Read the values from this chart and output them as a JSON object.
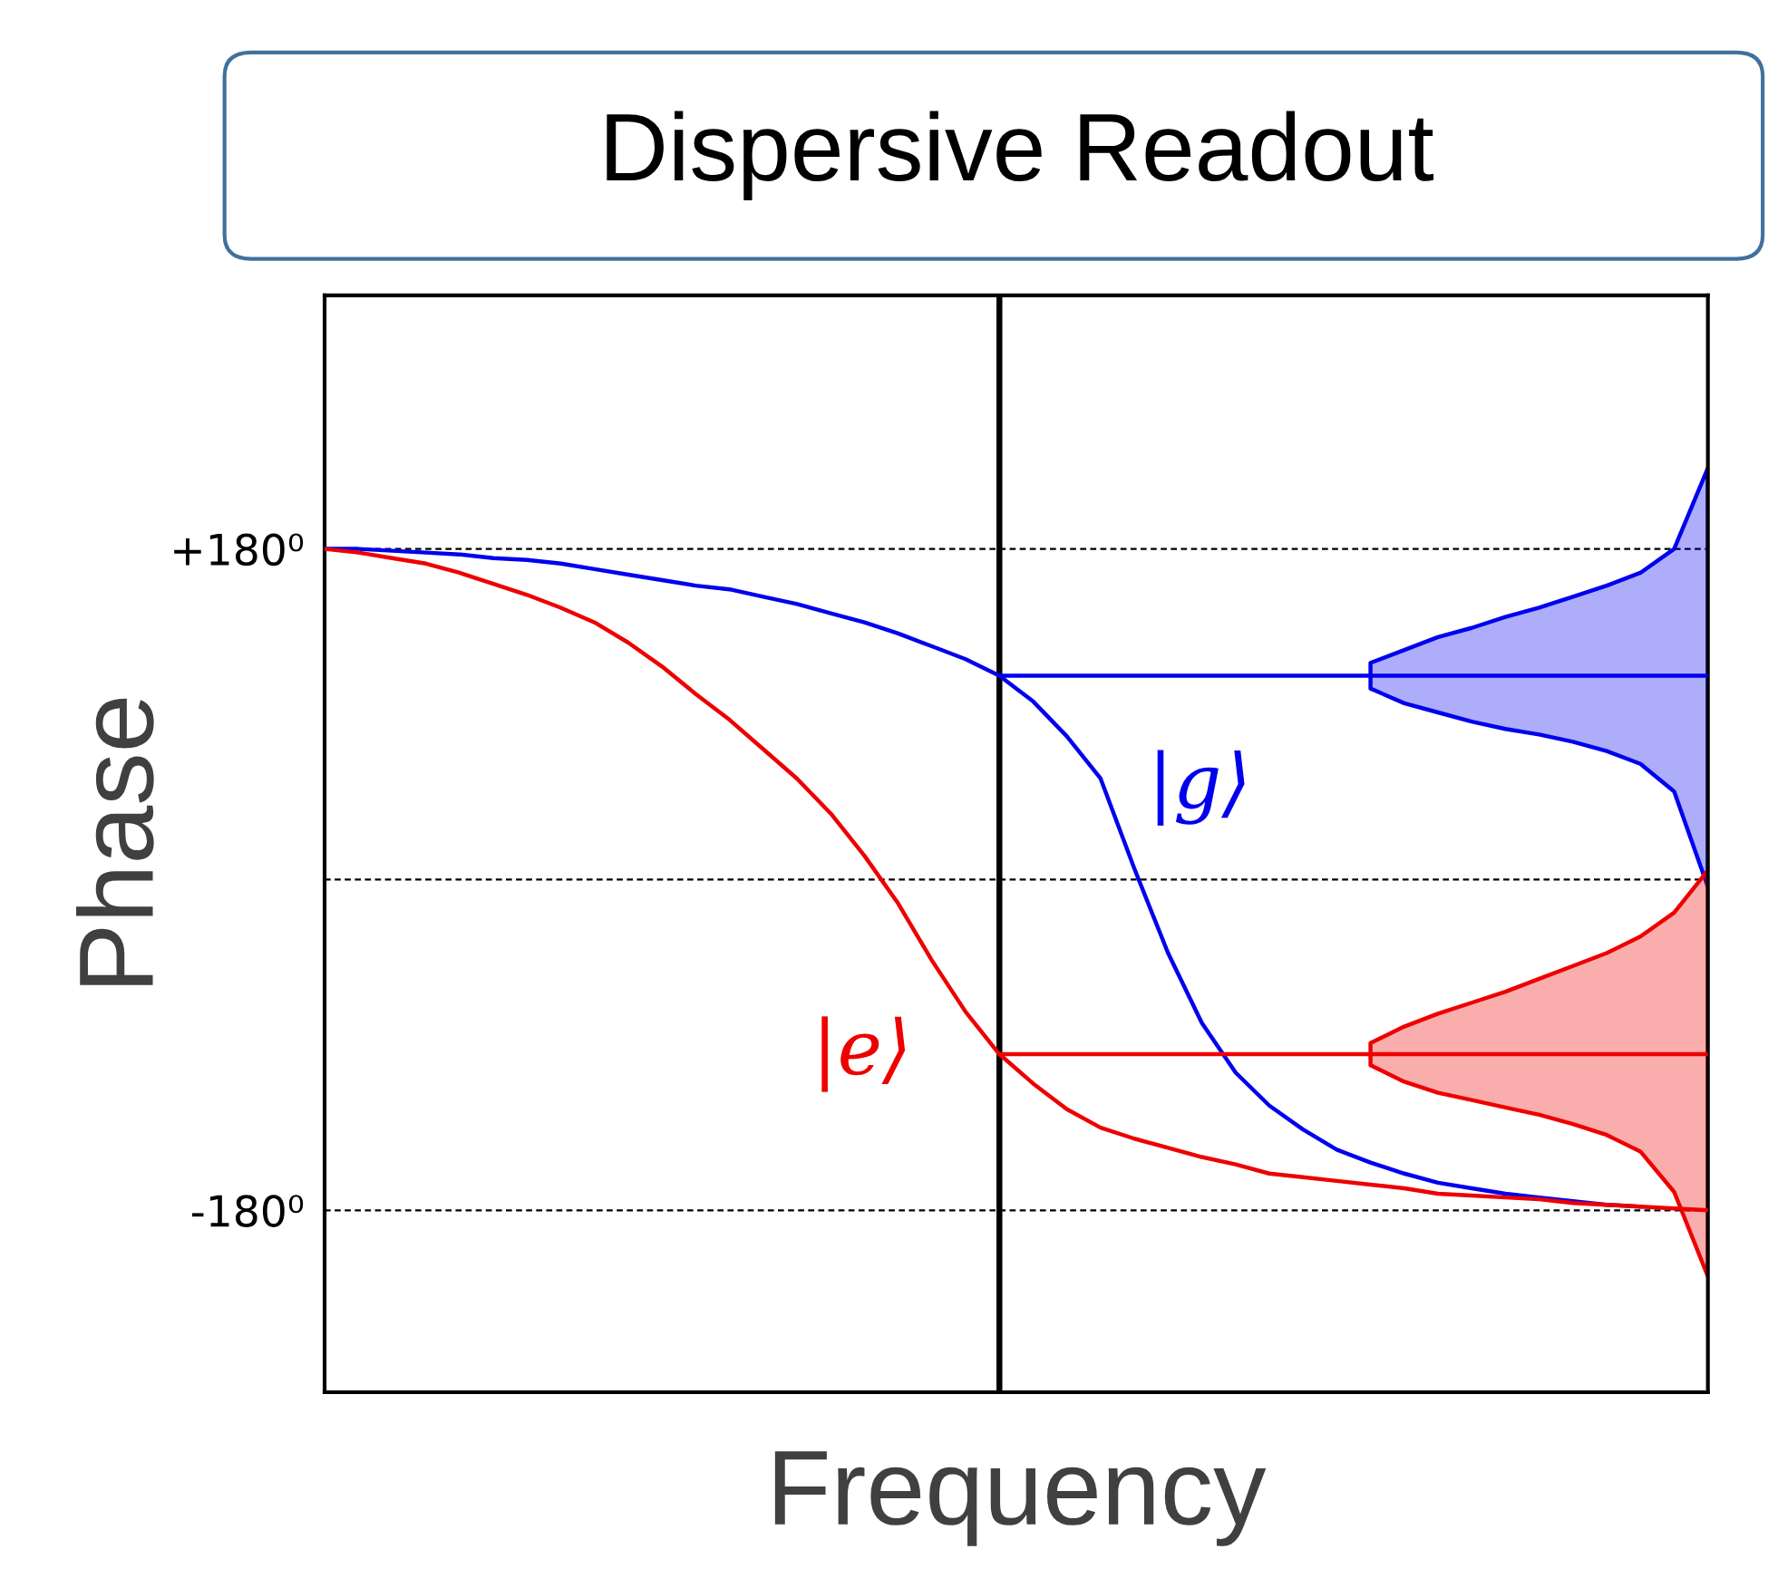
{
  "chart_data": {
    "type": "line",
    "title": "Dispersive Readout",
    "xlabel": "Frequency",
    "ylabel": "Phase",
    "categories": [
      null,
      null,
      null,
      null,
      null,
      null,
      null,
      null,
      null,
      null,
      null,
      null,
      null,
      null,
      null,
      null,
      null,
      null,
      null,
      null,
      null,
      null,
      null,
      null,
      null,
      null,
      null,
      null,
      null,
      null,
      null,
      null,
      null,
      null,
      null,
      null,
      null,
      null,
      null,
      null,
      null,
      null
    ],
    "ylim": [
      -279,
      318
    ],
    "yticks": [
      {
        "value": 180,
        "label": "+180⁰"
      },
      {
        "value": -180,
        "label": "-180⁰"
      }
    ],
    "tick_labels": "y",
    "grid": false,
    "legend": false,
    "marker": "none",
    "line_style": "solid",
    "series": [
      {
        "color": "#0000ee",
        "values": [
          180,
          180,
          179,
          178,
          177,
          175,
          174,
          172,
          169,
          166,
          163,
          160,
          158,
          154,
          150,
          145,
          140,
          134,
          127,
          120,
          111,
          97,
          78,
          55,
          6,
          -40,
          -78,
          -105,
          -123,
          -136,
          -147,
          -154,
          -160,
          -165,
          -168,
          -171,
          -173,
          -175,
          -177,
          -178,
          null,
          null
        ]
      },
      {
        "color": "#ee0000",
        "values": [
          180,
          178,
          175,
          172,
          167,
          161,
          155,
          148,
          140,
          129,
          116,
          101,
          87,
          71,
          55,
          36,
          13,
          -13,
          -44,
          -72,
          -95,
          -111,
          -125,
          -135,
          -141,
          -146,
          -151,
          -155,
          -160,
          -162,
          -164,
          -166,
          -168,
          -171,
          -172,
          -173,
          -174,
          -176,
          -177,
          -178,
          -179,
          -180
        ]
      },
      {
        "color": "#0000ee",
        "values": [
          null,
          null,
          null,
          null,
          null,
          null,
          null,
          null,
          null,
          null,
          null,
          null,
          null,
          null,
          null,
          null,
          null,
          null,
          null,
          null,
          111,
          111,
          111,
          111,
          111,
          111,
          111,
          111,
          111,
          111,
          111,
          111,
          111,
          111,
          111,
          111,
          111,
          111,
          111,
          111,
          111,
          111
        ],
        "upper": [
          null,
          null,
          null,
          null,
          null,
          null,
          null,
          null,
          null,
          null,
          null,
          null,
          null,
          null,
          null,
          null,
          null,
          null,
          null,
          null,
          null,
          null,
          null,
          null,
          null,
          null,
          null,
          null,
          null,
          null,
          null,
          118,
          125,
          132,
          137,
          143,
          148,
          154,
          160,
          167,
          180,
          224
        ],
        "lower": [
          null,
          null,
          null,
          null,
          null,
          null,
          null,
          null,
          null,
          null,
          null,
          null,
          null,
          null,
          null,
          null,
          null,
          null,
          null,
          null,
          null,
          null,
          null,
          null,
          null,
          null,
          null,
          null,
          null,
          null,
          null,
          104,
          96,
          91,
          86,
          82,
          79,
          75,
          70,
          63,
          48,
          -4
        ]
      },
      {
        "color": "#ee0000",
        "values": [
          null,
          null,
          null,
          null,
          null,
          null,
          null,
          null,
          null,
          null,
          null,
          null,
          null,
          null,
          null,
          null,
          null,
          null,
          null,
          null,
          -95,
          -95,
          -95,
          -95,
          -95,
          -95,
          -95,
          -95,
          -95,
          -95,
          -95,
          -95,
          -95,
          -95,
          -95,
          -95,
          -95,
          -95,
          -95,
          -95,
          -95,
          -95
        ],
        "upper": [
          null,
          null,
          null,
          null,
          null,
          null,
          null,
          null,
          null,
          null,
          null,
          null,
          null,
          null,
          null,
          null,
          null,
          null,
          null,
          null,
          null,
          null,
          null,
          null,
          null,
          null,
          null,
          null,
          null,
          null,
          null,
          -89,
          -80,
          -73,
          -67,
          -61,
          -54,
          -47,
          -40,
          -31,
          -18,
          5
        ],
        "lower": [
          null,
          null,
          null,
          null,
          null,
          null,
          null,
          null,
          null,
          null,
          null,
          null,
          null,
          null,
          null,
          null,
          null,
          null,
          null,
          null,
          null,
          null,
          null,
          null,
          null,
          null,
          null,
          null,
          null,
          null,
          null,
          -101,
          -110,
          -116,
          -120,
          -124,
          -128,
          -133,
          -139,
          -148,
          -170,
          -216
        ]
      }
    ],
    "ref_lines": [
      {
        "axis": "y",
        "value": 180,
        "color": "#000000",
        "line_style": "dashed"
      },
      {
        "axis": "y",
        "value": 0,
        "color": "#000000",
        "line_style": "dashed"
      },
      {
        "axis": "y",
        "value": -180,
        "color": "#000000",
        "line_style": "dashed"
      }
    ],
    "annotations": [
      "|g⟩",
      "|e⟩"
    ]
  }
}
